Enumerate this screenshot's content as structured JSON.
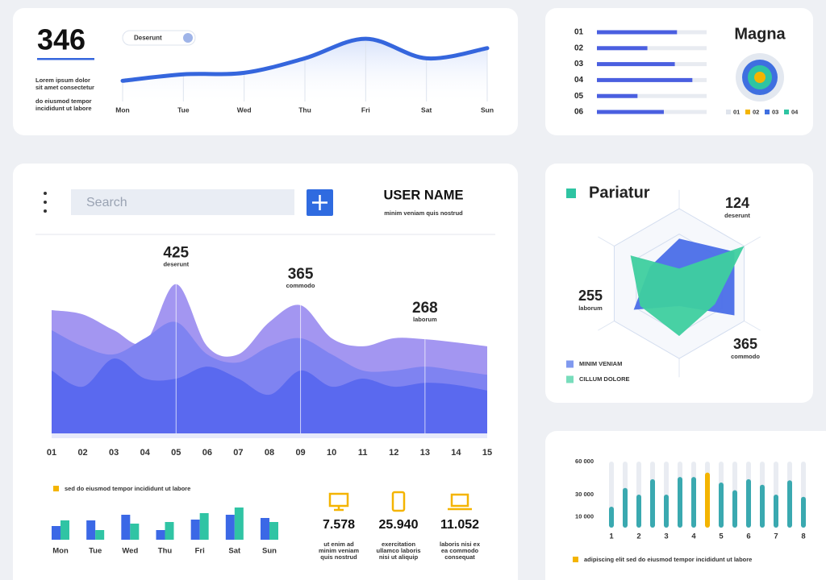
{
  "summary": {
    "value": "346",
    "lines": [
      "Lorem ipsum dolor",
      "sit amet consectetur",
      "do eiusmod tempor",
      "incididunt ut labore"
    ],
    "pill": "Deserunt"
  },
  "search": {
    "placeholder": "Search"
  },
  "user": {
    "name": "USER NAME",
    "subtitle": "minim veniam quis nostrud"
  },
  "stats": [
    {
      "value": "7.578",
      "lines": [
        "ut enim ad",
        "minim veniam",
        "quis nostrud"
      ]
    },
    {
      "value": "25.940",
      "lines": [
        "exercitation",
        "ullamco laboris",
        "nisi ut aliquip"
      ]
    },
    {
      "value": "11.052",
      "lines": [
        "laboris nisi ex",
        "ea commodo",
        "consequat"
      ]
    }
  ],
  "chart_data": [
    {
      "type": "line",
      "categories": [
        "Mon",
        "Tue",
        "Wed",
        "Thu",
        "Fri",
        "Sat",
        "Sun"
      ],
      "values": [
        33,
        42,
        44,
        64,
        91,
        64,
        78
      ],
      "color": "#3566dd",
      "ylim": [
        0,
        100
      ]
    },
    {
      "type": "hbar",
      "title": "Magna",
      "categories": [
        "01",
        "02",
        "03",
        "04",
        "05",
        "06"
      ],
      "values": [
        73,
        46,
        71,
        87,
        37,
        61
      ],
      "color": "#4a5fe0",
      "xlim": [
        0,
        100
      ],
      "legend": [
        {
          "name": "01",
          "color": "#dfe4ec"
        },
        {
          "name": "02",
          "color": "#f4b400"
        },
        {
          "name": "03",
          "color": "#3f6fe0"
        },
        {
          "name": "04",
          "color": "#2ec4a2"
        }
      ]
    },
    {
      "type": "area",
      "categories": [
        "01",
        "02",
        "03",
        "04",
        "05",
        "06",
        "07",
        "08",
        "09",
        "10",
        "11",
        "12",
        "13",
        "14",
        "15"
      ],
      "series": [
        {
          "color": "#a396f1",
          "values": [
            351,
            339,
            294,
            259,
            425,
            248,
            225,
            317,
            365,
            271,
            248,
            271,
            268,
            259,
            248
          ]
        },
        {
          "color": "#7f83f1",
          "values": [
            294,
            248,
            225,
            271,
            317,
            225,
            202,
            248,
            271,
            225,
            179,
            179,
            190,
            179,
            167
          ]
        },
        {
          "color": "#5a69ef",
          "values": [
            179,
            133,
            213,
            156,
            156,
            190,
            156,
            110,
            179,
            133,
            156,
            133,
            144,
            138,
            122
          ]
        }
      ],
      "ylim": [
        0,
        500
      ],
      "annotations": [
        {
          "value": 425,
          "text": "deserunt"
        },
        {
          "value": 365,
          "text": "commodo"
        },
        {
          "value": 268,
          "text": "laborum"
        }
      ]
    },
    {
      "type": "bar",
      "categories": [
        "Mon",
        "Tue",
        "Wed",
        "Thu",
        "Fri",
        "Sat",
        "Sun"
      ],
      "series": [
        {
          "color": "#3b68e6",
          "values": [
            17,
            24,
            31,
            12,
            25,
            31,
            27
          ]
        },
        {
          "color": "#30c4a4",
          "values": [
            24,
            12,
            20,
            22,
            33,
            40,
            22
          ]
        }
      ],
      "ylim": [
        0,
        50
      ],
      "caption": "sed do eiusmod tempor incididunt ut labore",
      "caption_color": "#f4b400"
    },
    {
      "type": "radar",
      "title": "Pariatur",
      "categories": [
        null,
        null,
        null,
        null,
        null,
        null
      ],
      "series": [
        {
          "name": "MINIM VENIAM",
          "color": "#4a6ee8",
          "values": [
            60,
            85,
            85,
            30,
            70,
            45
          ]
        },
        {
          "name": "CILLUM DOLORE",
          "color": "#3ecf9f",
          "values": [
            20,
            100,
            55,
            70,
            60,
            75
          ]
        }
      ],
      "rlim": [
        0,
        100
      ],
      "annotations": [
        {
          "value": 124,
          "text": "deserunt"
        },
        {
          "value": 255,
          "text": "laborum"
        },
        {
          "value": 365,
          "text": "commodo"
        }
      ]
    },
    {
      "type": "bar",
      "categories": [
        "1",
        null,
        "2",
        null,
        "3",
        null,
        "4",
        null,
        "5",
        null,
        "6",
        null,
        "7",
        null,
        "8"
      ],
      "values": [
        19000,
        36000,
        30000,
        44000,
        30000,
        46000,
        46000,
        50000,
        41000,
        34000,
        44000,
        39000,
        30000,
        43000,
        28000
      ],
      "colors": [
        "#3aa9b0",
        "#3aa9b0",
        "#3aa9b0",
        "#3aa9b0",
        "#3aa9b0",
        "#3aa9b0",
        "#3aa9b0",
        "#f4b400",
        "#3aa9b0",
        "#3aa9b0",
        "#3aa9b0",
        "#3aa9b0",
        "#3aa9b0",
        "#3aa9b0",
        "#3aa9b0"
      ],
      "ylim": [
        0,
        60000
      ],
      "yticks": [
        {
          "value": 60000,
          "label": "60 000"
        },
        {
          "value": 30000,
          "label": "30 000"
        },
        {
          "value": 10000,
          "label": "10 000"
        }
      ],
      "caption": "adipiscing elit sed do eiusmod tempor incididunt ut labore",
      "caption_color": "#f4b400"
    }
  ]
}
